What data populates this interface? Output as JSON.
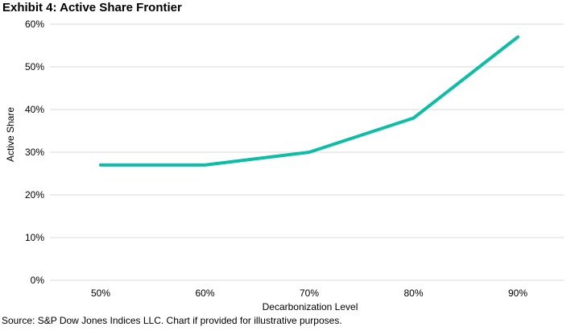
{
  "title": "Exhibit 4: Active Share Frontier",
  "source_note": "Source: S&P Dow Jones Indices LLC. Chart if provided for illustrative purposes.",
  "chart_data": {
    "type": "line",
    "title": "Exhibit 4: Active Share Frontier",
    "xlabel": "Decarbonization Level",
    "ylabel": "Active Share",
    "categories": [
      "50%",
      "60%",
      "70%",
      "80%",
      "90%"
    ],
    "series": [
      {
        "values": [
          27,
          27,
          30,
          38,
          57
        ],
        "color": "#0BBEA5"
      }
    ],
    "ylim": [
      0,
      60
    ],
    "ytick_step": 10,
    "ytick_labels": [
      "0%",
      "10%",
      "20%",
      "30%",
      "40%",
      "50%",
      "60%"
    ],
    "grid": "horizontal",
    "gridline_color": "#D9D9D9",
    "legend_position": "none",
    "line_width": 4
  }
}
